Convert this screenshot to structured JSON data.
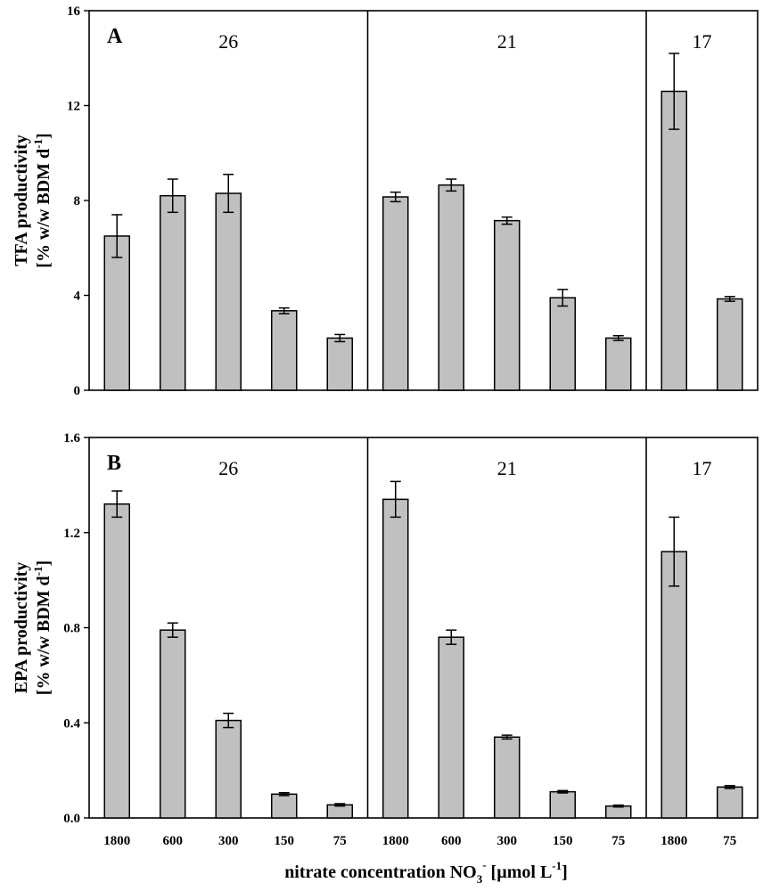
{
  "chart_data": [
    {
      "type": "bar",
      "panel_label": "A",
      "ylabel_line1": "TFA productivity",
      "ylabel_line2": "[% w/w BDM d",
      "ylabel_sup": "-1",
      "ylabel_end": "]",
      "ylim": [
        0,
        16
      ],
      "yticks": [
        "0",
        "4",
        "8",
        "12",
        "16"
      ],
      "ytick_values": [
        0,
        4,
        8,
        12,
        16
      ],
      "groups": [
        {
          "label": "26",
          "categories": [
            "1800",
            "600",
            "300",
            "150",
            "75"
          ],
          "values": [
            6.5,
            8.2,
            8.3,
            3.35,
            2.2
          ],
          "errors": [
            0.9,
            0.7,
            0.8,
            0.12,
            0.15
          ]
        },
        {
          "label": "21",
          "categories": [
            "1800",
            "600",
            "300",
            "150",
            "75"
          ],
          "values": [
            8.15,
            8.65,
            7.15,
            3.9,
            2.2
          ],
          "errors": [
            0.2,
            0.25,
            0.15,
            0.35,
            0.1
          ]
        },
        {
          "label": "17",
          "categories": [
            "1800",
            "75"
          ],
          "values": [
            12.6,
            3.85
          ],
          "errors": [
            1.6,
            0.1
          ]
        }
      ]
    },
    {
      "type": "bar",
      "panel_label": "B",
      "ylabel_line1": "EPA productivity",
      "ylabel_line2": "[% w/w BDM d",
      "ylabel_sup": "-1",
      "ylabel_end": "]",
      "ylim": [
        0,
        1.6
      ],
      "yticks": [
        "0.0",
        "0.4",
        "0.8",
        "1.2",
        "1.6"
      ],
      "ytick_values": [
        0,
        0.4,
        0.8,
        1.2,
        1.6
      ],
      "groups": [
        {
          "label": "26",
          "categories": [
            "1800",
            "600",
            "300",
            "150",
            "75"
          ],
          "values": [
            1.32,
            0.79,
            0.41,
            0.1,
            0.055
          ],
          "errors": [
            0.055,
            0.03,
            0.03,
            0.006,
            0.005
          ]
        },
        {
          "label": "21",
          "categories": [
            "1800",
            "600",
            "300",
            "150",
            "75"
          ],
          "values": [
            1.34,
            0.76,
            0.34,
            0.11,
            0.05
          ],
          "errors": [
            0.075,
            0.03,
            0.008,
            0.005,
            0.004
          ]
        },
        {
          "label": "17",
          "categories": [
            "1800",
            "75"
          ],
          "values": [
            1.12,
            0.13
          ],
          "errors": [
            0.145,
            0.006
          ]
        }
      ]
    }
  ],
  "xlabel_main": "nitrate concentration NO",
  "xlabel_sub": "3",
  "xlabel_sup1": "-",
  "xlabel_mid": " [µmol L",
  "xlabel_sup2": "-1",
  "xlabel_end": "]",
  "bar_color": "#c0c0c0"
}
